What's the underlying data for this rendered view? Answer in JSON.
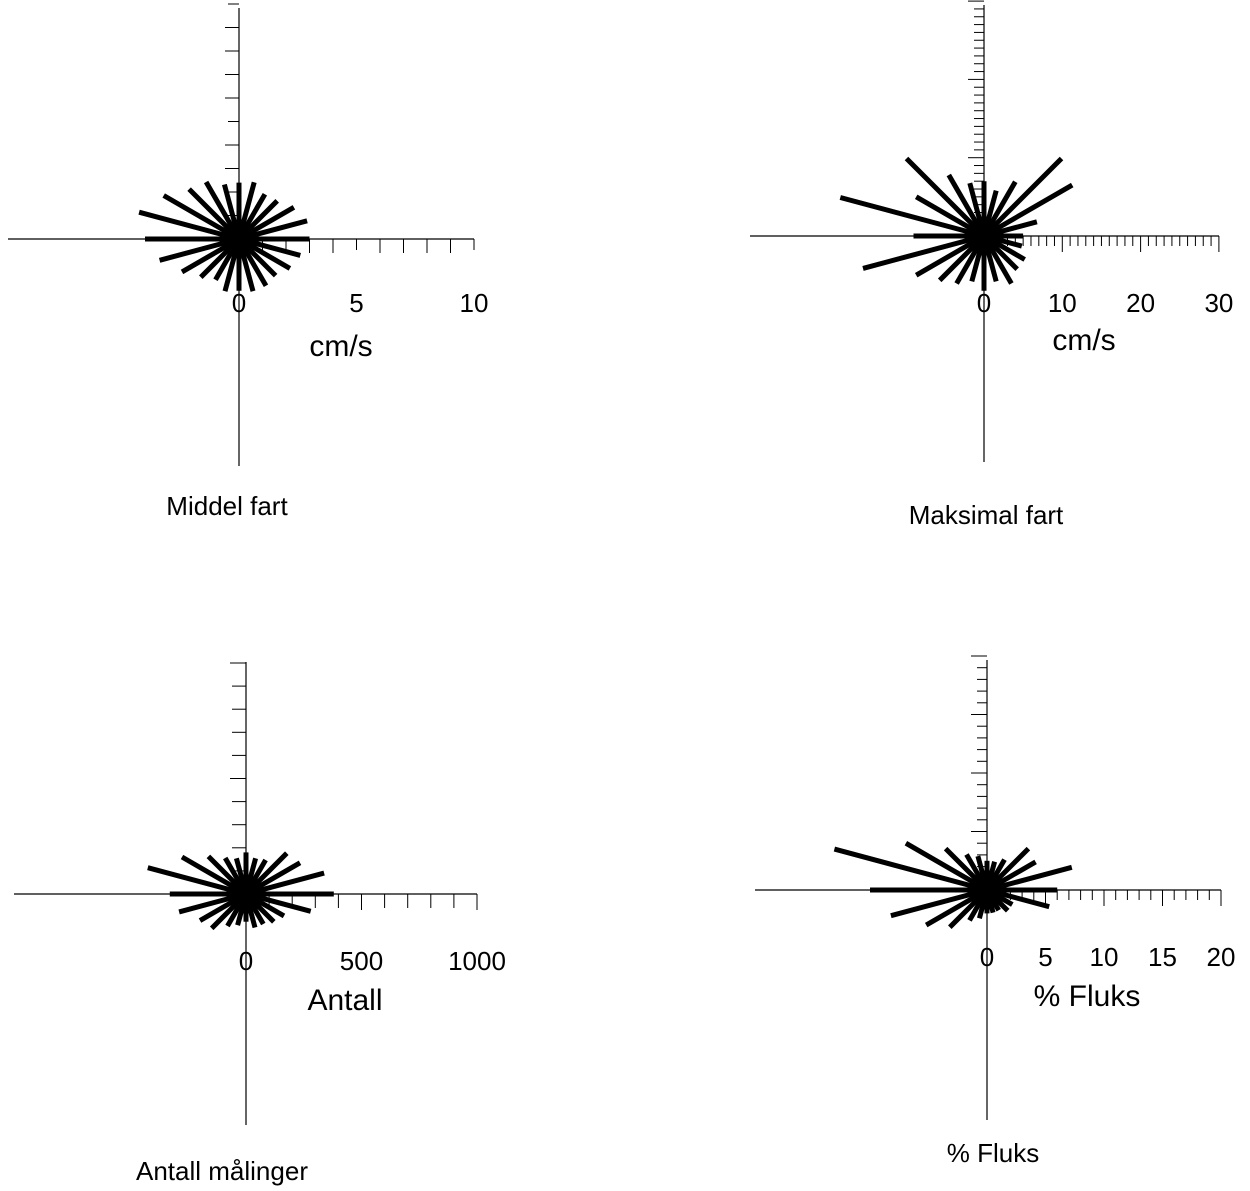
{
  "chart_data": [
    {
      "type": "polar-rose",
      "caption": "Middel fart",
      "xlabel": "cm/s",
      "ticks": [
        "0",
        "5",
        "10"
      ],
      "rmax": 10,
      "minor_tick_step": 1,
      "directions_deg": [
        0,
        15,
        30,
        45,
        60,
        75,
        90,
        105,
        120,
        135,
        150,
        165,
        180,
        195,
        210,
        225,
        240,
        255,
        270,
        285,
        300,
        315,
        330,
        345
      ],
      "values": [
        2.4,
        2.5,
        2.2,
        2.3,
        2.7,
        3.0,
        3.0,
        2.7,
        2.5,
        2.2,
        2.3,
        2.3,
        2.2,
        2.3,
        2.0,
        2.3,
        2.8,
        3.5,
        4.0,
        4.4,
        3.7,
        3.0,
        2.8,
        2.4
      ]
    },
    {
      "type": "polar-rose",
      "caption": "Maksimal fart",
      "xlabel": "cm/s",
      "ticks": [
        "0",
        "10",
        "20",
        "30"
      ],
      "rmax": 30,
      "minor_tick_step": 1,
      "directions_deg": [
        0,
        15,
        30,
        45,
        60,
        75,
        90,
        105,
        120,
        135,
        150,
        165,
        180,
        195,
        210,
        225,
        240,
        255,
        270,
        285,
        300,
        315,
        330,
        345
      ],
      "values": [
        7,
        6,
        8,
        14,
        13,
        7,
        5,
        5,
        6,
        6,
        7,
        6,
        7,
        6,
        7,
        8,
        10,
        16,
        9,
        19,
        10,
        14,
        9,
        7
      ]
    },
    {
      "type": "polar-rose",
      "caption": "Antall målinger",
      "xlabel": "Antall",
      "ticks": [
        "0",
        "500",
        "1000"
      ],
      "rmax": 1000,
      "minor_tick_step": 100,
      "directions_deg": [
        0,
        15,
        30,
        45,
        60,
        75,
        90,
        105,
        120,
        135,
        150,
        165,
        180,
        195,
        210,
        225,
        240,
        255,
        270,
        285,
        300,
        315,
        330,
        345
      ],
      "values": [
        180,
        160,
        170,
        250,
        270,
        350,
        380,
        290,
        190,
        170,
        150,
        150,
        120,
        140,
        160,
        210,
        230,
        300,
        330,
        440,
        320,
        230,
        180,
        160
      ]
    },
    {
      "type": "polar-rose",
      "caption": "% Fluks",
      "xlabel": "% Fluks",
      "ticks": [
        "0",
        "5",
        "10",
        "15",
        "20"
      ],
      "rmax": 20,
      "minor_tick_step": 1,
      "directions_deg": [
        0,
        15,
        30,
        45,
        60,
        75,
        90,
        105,
        120,
        135,
        150,
        165,
        180,
        195,
        210,
        225,
        240,
        255,
        270,
        285,
        300,
        315,
        330,
        345
      ],
      "values": [
        2.5,
        2.5,
        3.0,
        5.0,
        4.8,
        7.5,
        6.0,
        5.5,
        2.5,
        2.5,
        2.0,
        2.0,
        2.0,
        2.5,
        3.0,
        4.5,
        6.0,
        8.5,
        10.0,
        13.5,
        8.0,
        5.0,
        3.5,
        3.0
      ]
    }
  ]
}
